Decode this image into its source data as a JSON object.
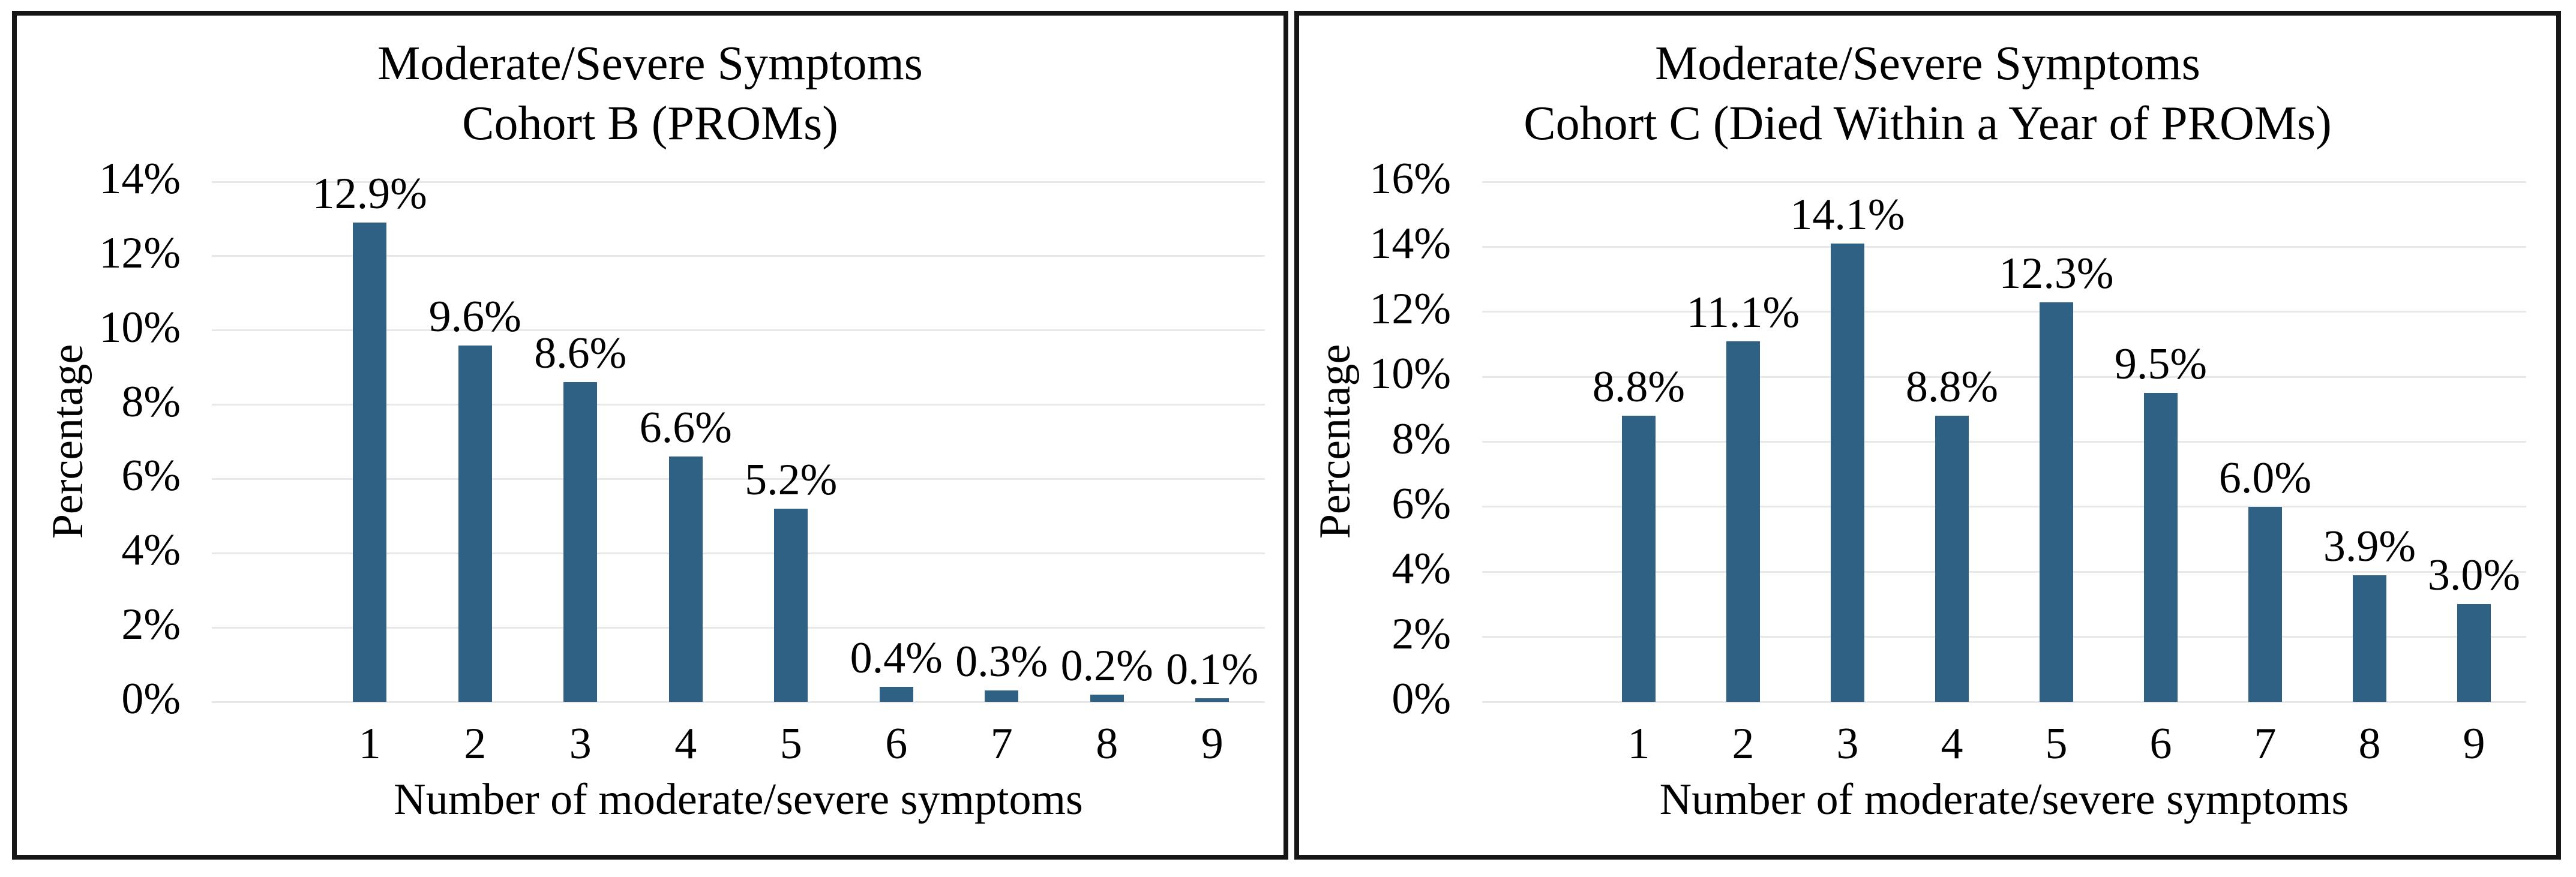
{
  "page": {
    "background": "#FFFFFF"
  },
  "colors": {
    "bar_fill": "#2E6183",
    "gridline": "#E8E8E8",
    "panel_border": "#161616",
    "text": "#000000"
  },
  "chart_data": [
    {
      "type": "bar",
      "title_line1": "Moderate/Severe Symptoms",
      "title_line2": "Cohort B (PROMs)",
      "xlabel": "Number of moderate/severe symptoms",
      "ylabel": "Percentage",
      "categories": [
        "1",
        "2",
        "3",
        "4",
        "5",
        "6",
        "7",
        "8",
        "9"
      ],
      "values": [
        12.9,
        9.6,
        8.6,
        6.6,
        5.2,
        0.4,
        0.3,
        0.2,
        0.1
      ],
      "value_labels": [
        "12.9%",
        "9.6%",
        "8.6%",
        "6.6%",
        "5.2%",
        "0.4%",
        "0.3%",
        "0.2%",
        "0.1%"
      ],
      "ylim": [
        0,
        14
      ],
      "ytick_step": 2,
      "ytick_labels": [
        "0%",
        "2%",
        "4%",
        "6%",
        "8%",
        "10%",
        "12%",
        "14%"
      ],
      "grid": true,
      "legend": false
    },
    {
      "type": "bar",
      "title_line1": "Moderate/Severe Symptoms",
      "title_line2": "Cohort C (Died Within a Year of PROMs)",
      "xlabel": "Number of moderate/severe symptoms",
      "ylabel": "Percentage",
      "categories": [
        "1",
        "2",
        "3",
        "4",
        "5",
        "6",
        "7",
        "8",
        "9"
      ],
      "values": [
        8.8,
        11.1,
        14.1,
        8.8,
        12.3,
        9.5,
        6.0,
        3.9,
        3.0
      ],
      "value_labels": [
        "8.8%",
        "11.1%",
        "14.1%",
        "8.8%",
        "12.3%",
        "9.5%",
        "6.0%",
        "3.9%",
        "3.0%"
      ],
      "ylim": [
        0,
        16
      ],
      "ytick_step": 2,
      "ytick_labels": [
        "0%",
        "2%",
        "4%",
        "6%",
        "8%",
        "10%",
        "12%",
        "14%",
        "16%"
      ],
      "grid": true,
      "legend": false
    }
  ]
}
